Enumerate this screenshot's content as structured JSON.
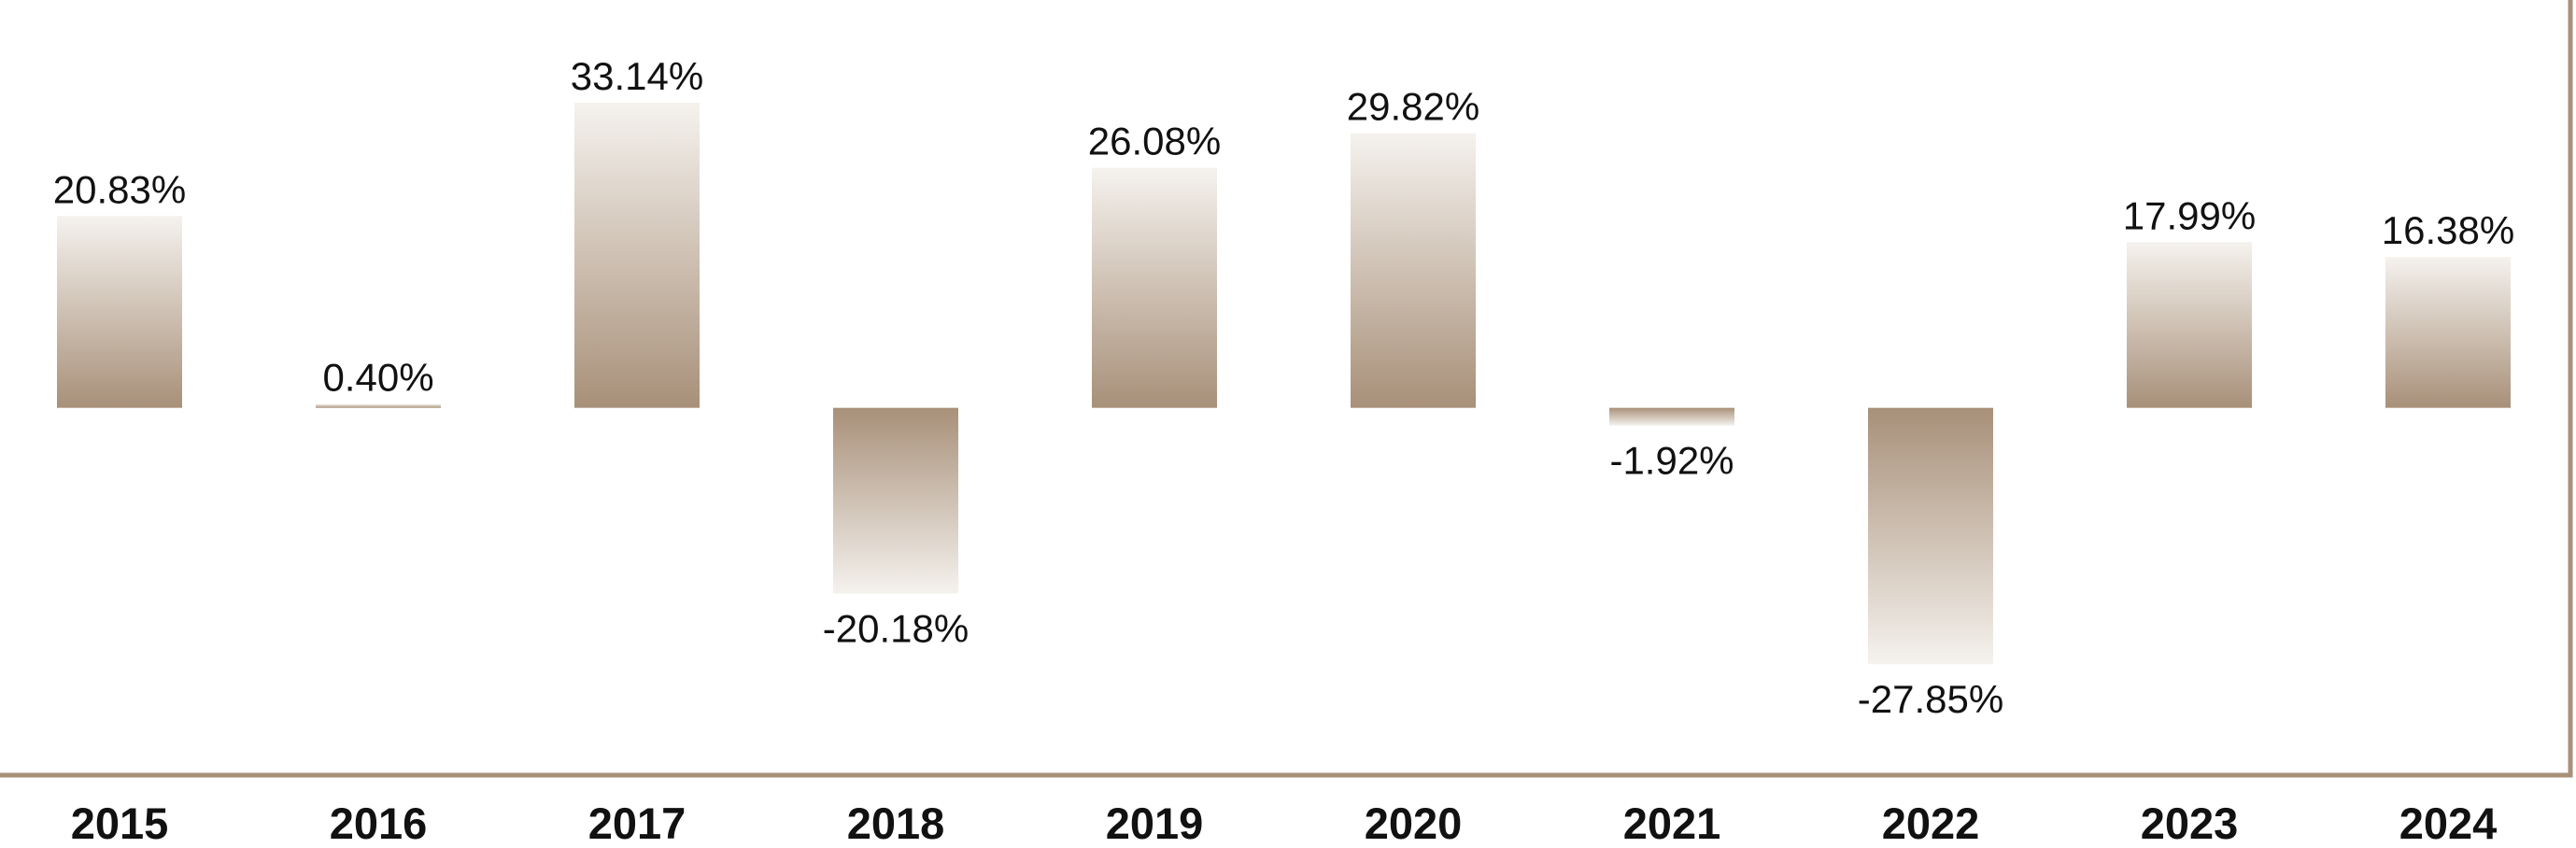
{
  "chart_data": {
    "type": "bar",
    "categories": [
      "2015",
      "2016",
      "2017",
      "2018",
      "2019",
      "2020",
      "2021",
      "2022",
      "2023",
      "2024"
    ],
    "values": [
      20.83,
      0.4,
      33.14,
      -20.18,
      26.08,
      29.82,
      -1.92,
      -27.85,
      17.99,
      16.38
    ],
    "data_labels": [
      "20.83%",
      "0.40%",
      "33.14%",
      "-20.18%",
      "26.08%",
      "29.82%",
      "-1.92%",
      "-27.85%",
      "17.99%",
      "16.38%"
    ],
    "title": "",
    "xlabel": "",
    "ylabel": "",
    "ylim": [
      -39.9,
      44.3
    ],
    "grid": false,
    "legend": "none",
    "colors": {
      "bar_base": "#a89079",
      "bar_fade": "#f5f2ee",
      "axis": "#a89079"
    }
  }
}
